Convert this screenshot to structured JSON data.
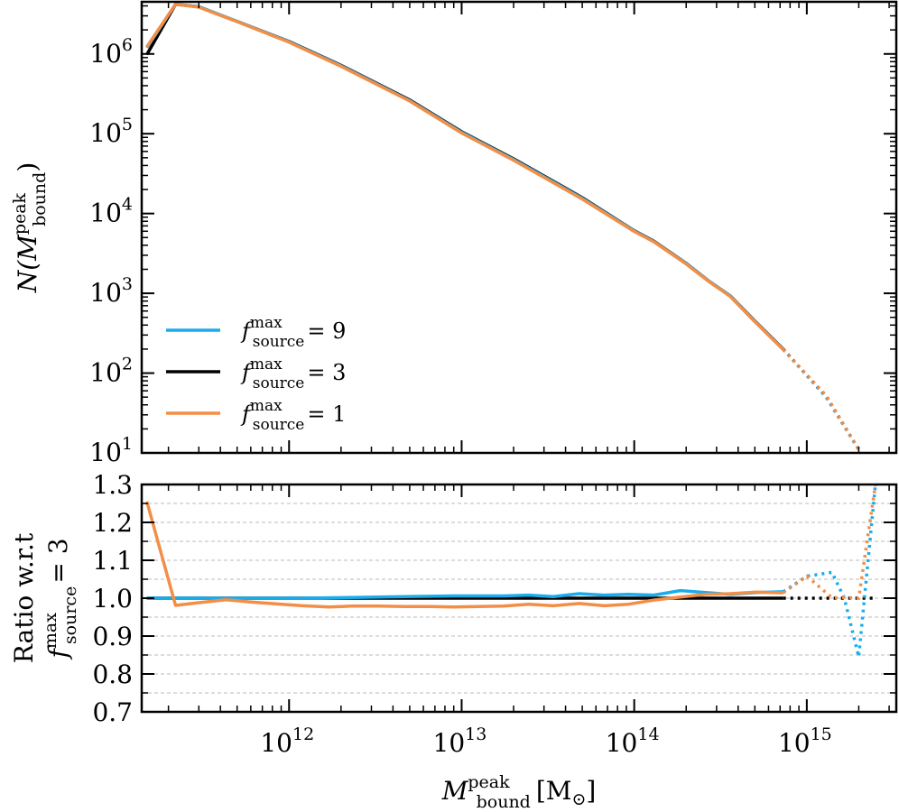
{
  "colors": {
    "f9": "#1aaceb",
    "f3": "#000000",
    "f1": "#f28e47",
    "grid": "#bbbbbb"
  },
  "x_axis": {
    "label_prefix": "M",
    "label_sup": "peak",
    "label_sub": "bound",
    "label_unit": "[M",
    "label_unit_sub": "⊙",
    "label_unit_close": "]",
    "scale": "log",
    "xlim": [
      140000000000.0,
      3300000000000000.0
    ],
    "ticks": [
      {
        "base": "10",
        "exp": "12",
        "value": 1000000000000.0
      },
      {
        "base": "10",
        "exp": "13",
        "value": 10000000000000.0
      },
      {
        "base": "10",
        "exp": "14",
        "value": 100000000000000.0
      },
      {
        "base": "10",
        "exp": "15",
        "value": 1000000000000000.0
      }
    ]
  },
  "chart_data": [
    {
      "type": "line",
      "panel": "top",
      "ylabel_prefix": "N(M",
      "ylabel_sup": "peak",
      "ylabel_sub": "bound",
      "ylabel_suffix": ")",
      "yscale": "log",
      "ylim": [
        10,
        4500000
      ],
      "yticks": [
        {
          "base": "10",
          "exp": "1",
          "value": 10
        },
        {
          "base": "10",
          "exp": "2",
          "value": 100
        },
        {
          "base": "10",
          "exp": "3",
          "value": 1000
        },
        {
          "base": "10",
          "exp": "4",
          "value": 10000
        },
        {
          "base": "10",
          "exp": "5",
          "value": 100000
        },
        {
          "base": "10",
          "exp": "6",
          "value": 1000000
        }
      ],
      "legend_position": "lower-left",
      "legend": [
        {
          "key": "f9",
          "prefix": "f",
          "sup": "max",
          "sub": "source",
          "eq": "= 9"
        },
        {
          "key": "f3",
          "prefix": "f",
          "sup": "max",
          "sub": "source",
          "eq": "= 3"
        },
        {
          "key": "f1",
          "prefix": "f",
          "sup": "max",
          "sub": "source",
          "eq": "= 1"
        }
      ],
      "x": [
        150000000000.0,
        220000000000.0,
        300000000000.0,
        500000000000.0,
        1000000000000.0,
        2000000000000.0,
        5000000000000.0,
        10000000000000.0,
        20000000000000.0,
        50000000000000.0,
        100000000000000.0,
        130000000000000.0,
        200000000000000.0,
        270000000000000.0,
        360000000000000.0,
        500000000000000.0,
        730000000000000.0,
        1300000000000000.0,
        2000000000000000.0
      ],
      "solid_until_index": 16,
      "series": [
        {
          "key": "f3",
          "values": [
            980000,
            4200000,
            3900000,
            2550000,
            1430000,
            720000,
            265000,
            106000,
            48500,
            15800,
            6100,
            4500,
            2380,
            1430,
            930,
            450,
            200,
            50,
            11
          ]
        },
        {
          "key": "f9",
          "values": [
            1200000,
            4200000,
            3900000,
            2550000,
            1420000,
            710000,
            260000,
            104000,
            47500,
            15500,
            6050,
            4450,
            2370,
            1430,
            925,
            445,
            198,
            50,
            11
          ]
        },
        {
          "key": "f1",
          "values": [
            1230000,
            4200000,
            3850000,
            2540000,
            1400000,
            700000,
            257000,
            102000,
            46500,
            15200,
            5950,
            4420,
            2330,
            1410,
            915,
            440,
            197,
            52,
            11
          ]
        }
      ]
    },
    {
      "type": "line",
      "panel": "bottom",
      "ylabel_line1": "Ratio w.r.t",
      "ylabel_prefix": "f",
      "ylabel_sup": "max",
      "ylabel_sub": "source",
      "ylabel_eq": "= 3",
      "yscale": "linear",
      "ylim": [
        0.7,
        1.3
      ],
      "yticks": [
        "0.7",
        "0.8",
        "0.9",
        "1.0",
        "1.1",
        "1.2",
        "1.3"
      ],
      "grid": "horizontal dashed",
      "x": [
        150000000000.0,
        220000000000.0,
        300000000000.0,
        430000000000.0,
        600000000000.0,
        830000000000.0,
        1200000000000.0,
        1700000000000.0,
        2300000000000.0,
        3300000000000.0,
        4700000000000.0,
        6500000000000.0,
        9000000000000.0,
        12500000000000.0,
        17500000000000.0,
        24500000000000.0,
        34000000000000.0,
        48000000000000.0,
        67000000000000.0,
        93000000000000.0,
        130000000000000.0,
        185000000000000.0,
        260000000000000.0,
        360000000000000.0,
        510000000000000.0,
        730000000000000.0,
        1000000000000000.0,
        1400000000000000.0,
        1650000000000000.0,
        2000000000000000.0,
        2500000000000000.0
      ],
      "solid_until_index": 25,
      "series": [
        {
          "key": "f3",
          "values": [
            1.0,
            1.0,
            1.0,
            1.0,
            1.0,
            1.0,
            1.0,
            1.0,
            1.0,
            1.0,
            1.0,
            1.0,
            1.0,
            1.0,
            1.0,
            1.0,
            1.0,
            1.0,
            1.0,
            1.0,
            1.0,
            1.0,
            1.0,
            1.0,
            1.0,
            1.0,
            1.0,
            1.0,
            1.0,
            1.0,
            1.0
          ]
        },
        {
          "key": "f9",
          "values": [
            1.0,
            1.0,
            1.0,
            1.0,
            1.0,
            1.0,
            1.0,
            1.001,
            1.002,
            1.003,
            1.004,
            1.005,
            1.006,
            1.006,
            1.006,
            1.008,
            1.004,
            1.012,
            1.008,
            1.01,
            1.008,
            1.02,
            1.015,
            1.01,
            1.015,
            1.017,
            1.058,
            1.068,
            1.0,
            0.845,
            1.3
          ]
        },
        {
          "key": "f1",
          "values": [
            1.255,
            0.981,
            0.988,
            0.996,
            0.99,
            0.985,
            0.98,
            0.977,
            0.979,
            0.979,
            0.978,
            0.978,
            0.977,
            0.978,
            0.979,
            0.984,
            0.98,
            0.986,
            0.98,
            0.984,
            0.995,
            1.003,
            1.01,
            1.012,
            1.016,
            1.014,
            1.058,
            1.001,
            1.002,
            1.0,
            1.3
          ]
        }
      ]
    }
  ]
}
